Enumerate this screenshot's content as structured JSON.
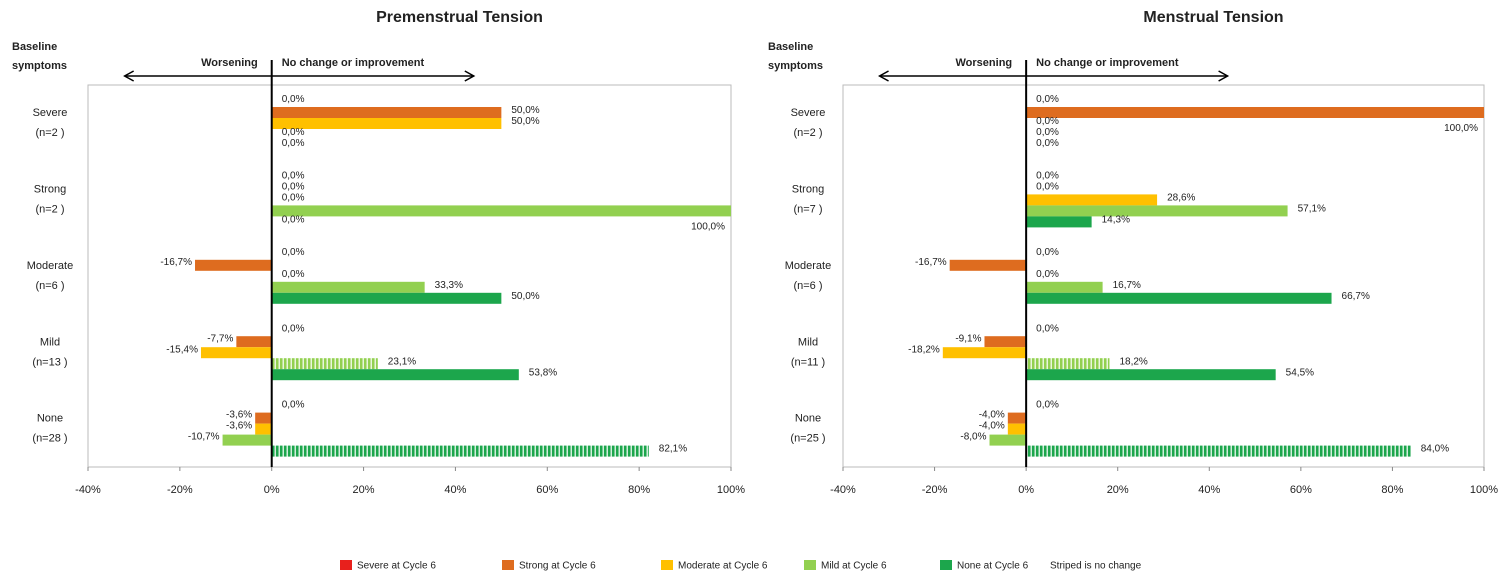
{
  "chart_data": [
    {
      "type": "bar",
      "title": "Premenstrual Tension",
      "annotations": {
        "baseline": [
          "Baseline",
          "symptoms"
        ],
        "worsening": "Worsening",
        "improvement": "No change or improvement"
      },
      "categories": [
        [
          "Severe",
          "(n=2 )"
        ],
        [
          "Strong",
          "(n=2 )"
        ],
        [
          "Moderate",
          "(n=6 )"
        ],
        [
          "Mild",
          "(n=13 )"
        ],
        [
          "None",
          "(n=28 )"
        ]
      ],
      "series": [
        {
          "color": "#e8201c",
          "values": [
            0,
            0,
            0,
            0,
            0
          ],
          "value_labels": [
            "0,0%",
            "0,0%",
            "0,0%",
            "0,0%",
            "0,0%"
          ]
        },
        {
          "color": "#de6c1f",
          "values": [
            50,
            0,
            -16.7,
            -7.7,
            -3.6
          ],
          "value_labels": [
            "50,0%",
            "0,0%",
            "-16,7%",
            "-7,7%",
            "-3,6%"
          ]
        },
        {
          "color": "#ffc000",
          "values": [
            50,
            0,
            0,
            -15.4,
            -3.6
          ],
          "value_labels": [
            "50,0%",
            "0,0%",
            "0,0%",
            "-15,4%",
            "-3,6%"
          ]
        },
        {
          "color": "#92d050",
          "values": [
            0,
            100,
            33.3,
            23.1,
            -10.7
          ],
          "value_labels": [
            "0,0%",
            "100,0%",
            "33,3%",
            "23,1%",
            "-10,7%"
          ]
        },
        {
          "color": "#1ca64c",
          "values": [
            0,
            0,
            50,
            53.8,
            82.1
          ],
          "value_labels": [
            "0,0%",
            "0,0%",
            "50,0%",
            "53,8%",
            "82,1%"
          ]
        }
      ],
      "xlim": [
        -40,
        100
      ],
      "xticks": [
        {
          "value": -40,
          "label": "-40%"
        },
        {
          "value": -20,
          "label": "-20%"
        },
        {
          "value": 0,
          "label": "0%"
        },
        {
          "value": 20,
          "label": "20%"
        },
        {
          "value": 40,
          "label": "40%"
        },
        {
          "value": 60,
          "label": "60%"
        },
        {
          "value": 80,
          "label": "80%"
        },
        {
          "value": 100,
          "label": "100%"
        }
      ]
    },
    {
      "type": "bar",
      "title": "Menstrual Tension",
      "annotations": {
        "baseline": [
          "Baseline",
          "symptoms"
        ],
        "worsening": "Worsening",
        "improvement": "No change or improvement"
      },
      "categories": [
        [
          "Severe",
          "(n=2 )"
        ],
        [
          "Strong",
          "(n=7 )"
        ],
        [
          "Moderate",
          "(n=6 )"
        ],
        [
          "Mild",
          "(n=11 )"
        ],
        [
          "None",
          "(n=25 )"
        ]
      ],
      "series": [
        {
          "color": "#e8201c",
          "values": [
            0,
            0,
            0,
            0,
            0
          ],
          "value_labels": [
            "0,0%",
            "0,0%",
            "0,0%",
            "0,0%",
            "0,0%"
          ]
        },
        {
          "color": "#de6c1f",
          "values": [
            100,
            0,
            -16.7,
            -9.1,
            -4.0
          ],
          "value_labels": [
            "100,0%",
            "0,0%",
            "-16,7%",
            "-9,1%",
            "-4,0%"
          ]
        },
        {
          "color": "#ffc000",
          "values": [
            0,
            28.6,
            0,
            -18.2,
            -4.0
          ],
          "value_labels": [
            "0,0%",
            "28,6%",
            "0,0%",
            "-18,2%",
            "-4,0%"
          ]
        },
        {
          "color": "#92d050",
          "values": [
            0,
            57.1,
            16.7,
            18.2,
            -8.0
          ],
          "value_labels": [
            "0,0%",
            "57,1%",
            "16,7%",
            "18,2%",
            "-8,0%"
          ]
        },
        {
          "color": "#1ca64c",
          "values": [
            0,
            14.3,
            66.7,
            54.5,
            84.0
          ],
          "value_labels": [
            "0,0%",
            "14,3%",
            "66,7%",
            "54,5%",
            "84,0%"
          ]
        }
      ],
      "xlim": [
        -40,
        100
      ],
      "xticks": [
        {
          "value": -40,
          "label": "-40%"
        },
        {
          "value": -20,
          "label": "-20%"
        },
        {
          "value": 0,
          "label": "0%"
        },
        {
          "value": 20,
          "label": "20%"
        },
        {
          "value": 40,
          "label": "40%"
        },
        {
          "value": 60,
          "label": "60%"
        },
        {
          "value": 80,
          "label": "80%"
        },
        {
          "value": 100,
          "label": "100%"
        }
      ]
    }
  ],
  "legend": {
    "entries": [
      "Severe at Cycle 6",
      "Strong at Cycle 6",
      "Moderate at Cycle 6",
      "Mild at Cycle 6",
      "None at Cycle 6"
    ],
    "note": "Striped is no change"
  }
}
